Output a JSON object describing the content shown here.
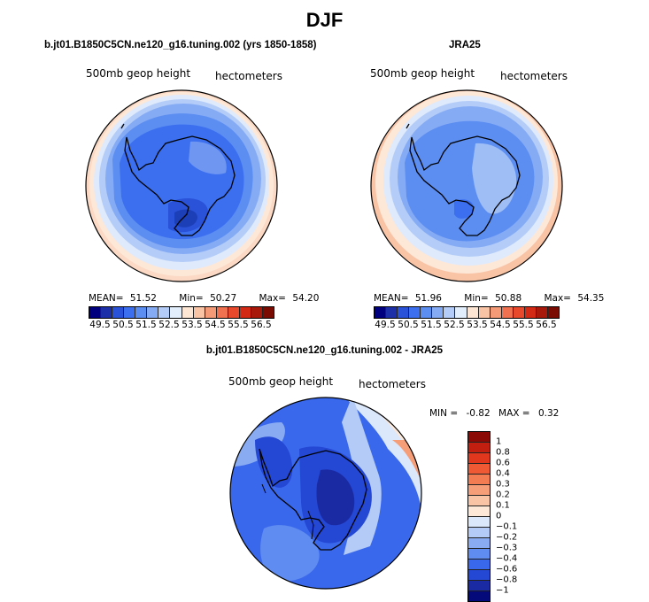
{
  "title": "DJF",
  "chart_data": [
    {
      "type": "heatmap",
      "projection": "south-polar-stereographic",
      "title": "b.jt01.B1850C5CN.ne120_g16.tuning.002 (yrs 1850-1858)",
      "variable": "500mb geop height",
      "units": "hectometers",
      "stats": {
        "mean_label": "MEAN=",
        "mean": "51.52",
        "min_label": "Min=",
        "min": "50.27",
        "max_label": "Max=",
        "max": "54.20"
      },
      "levels": [
        "49.5",
        "50.5",
        "51.5",
        "52.5",
        "53.5",
        "54.5",
        "55.5",
        "56.5"
      ],
      "colorbar_colors": [
        "#00007f",
        "#1c2fa8",
        "#2a52d8",
        "#3b6ff0",
        "#5c8ef2",
        "#86abf5",
        "#b4cdf8",
        "#e3eefc",
        "#fde6d3",
        "#f9c3a6",
        "#f59a77",
        "#ef7150",
        "#e8482c",
        "#d32a15",
        "#a8180b",
        "#7a0b03"
      ]
    },
    {
      "type": "heatmap",
      "projection": "south-polar-stereographic",
      "title": "JRA25",
      "variable": "500mb geop height",
      "units": "hectometers",
      "stats": {
        "mean_label": "MEAN=",
        "mean": "51.96",
        "min_label": "Min=",
        "min": "50.88",
        "max_label": "Max=",
        "max": "54.35"
      },
      "levels": [
        "49.5",
        "50.5",
        "51.5",
        "52.5",
        "53.5",
        "54.5",
        "55.5",
        "56.5"
      ],
      "colorbar_colors": [
        "#00007f",
        "#1c2fa8",
        "#2a52d8",
        "#3b6ff0",
        "#5c8ef2",
        "#86abf5",
        "#b4cdf8",
        "#e3eefc",
        "#fde6d3",
        "#f9c3a6",
        "#f59a77",
        "#ef7150",
        "#e8482c",
        "#d32a15",
        "#a8180b",
        "#7a0b03"
      ]
    },
    {
      "type": "heatmap",
      "projection": "south-polar-stereographic",
      "title": "b.jt01.B1850C5CN.ne120_g16.tuning.002 - JRA25",
      "variable": "500mb geop height",
      "units": "hectometers",
      "stats": {
        "min_label": "MIN =",
        "min": "-0.82",
        "max_label": "MAX =",
        "max": "0.32"
      },
      "levels": [
        "1",
        "0.8",
        "0.6",
        "0.4",
        "0.3",
        "0.2",
        "0.1",
        "0",
        "−0.1",
        "−0.2",
        "−0.3",
        "−0.4",
        "−0.6",
        "−0.8",
        "−1"
      ],
      "colorbar_colors": [
        "#8b0a05",
        "#c21f10",
        "#e1371c",
        "#ef5a35",
        "#f47c53",
        "#f69e77",
        "#f9c3a6",
        "#fde8d8",
        "#dbe7fb",
        "#b3cbf6",
        "#89abf2",
        "#5f8cf0",
        "#3a68ec",
        "#2447d4",
        "#1a2aa3",
        "#050a7a"
      ]
    }
  ]
}
